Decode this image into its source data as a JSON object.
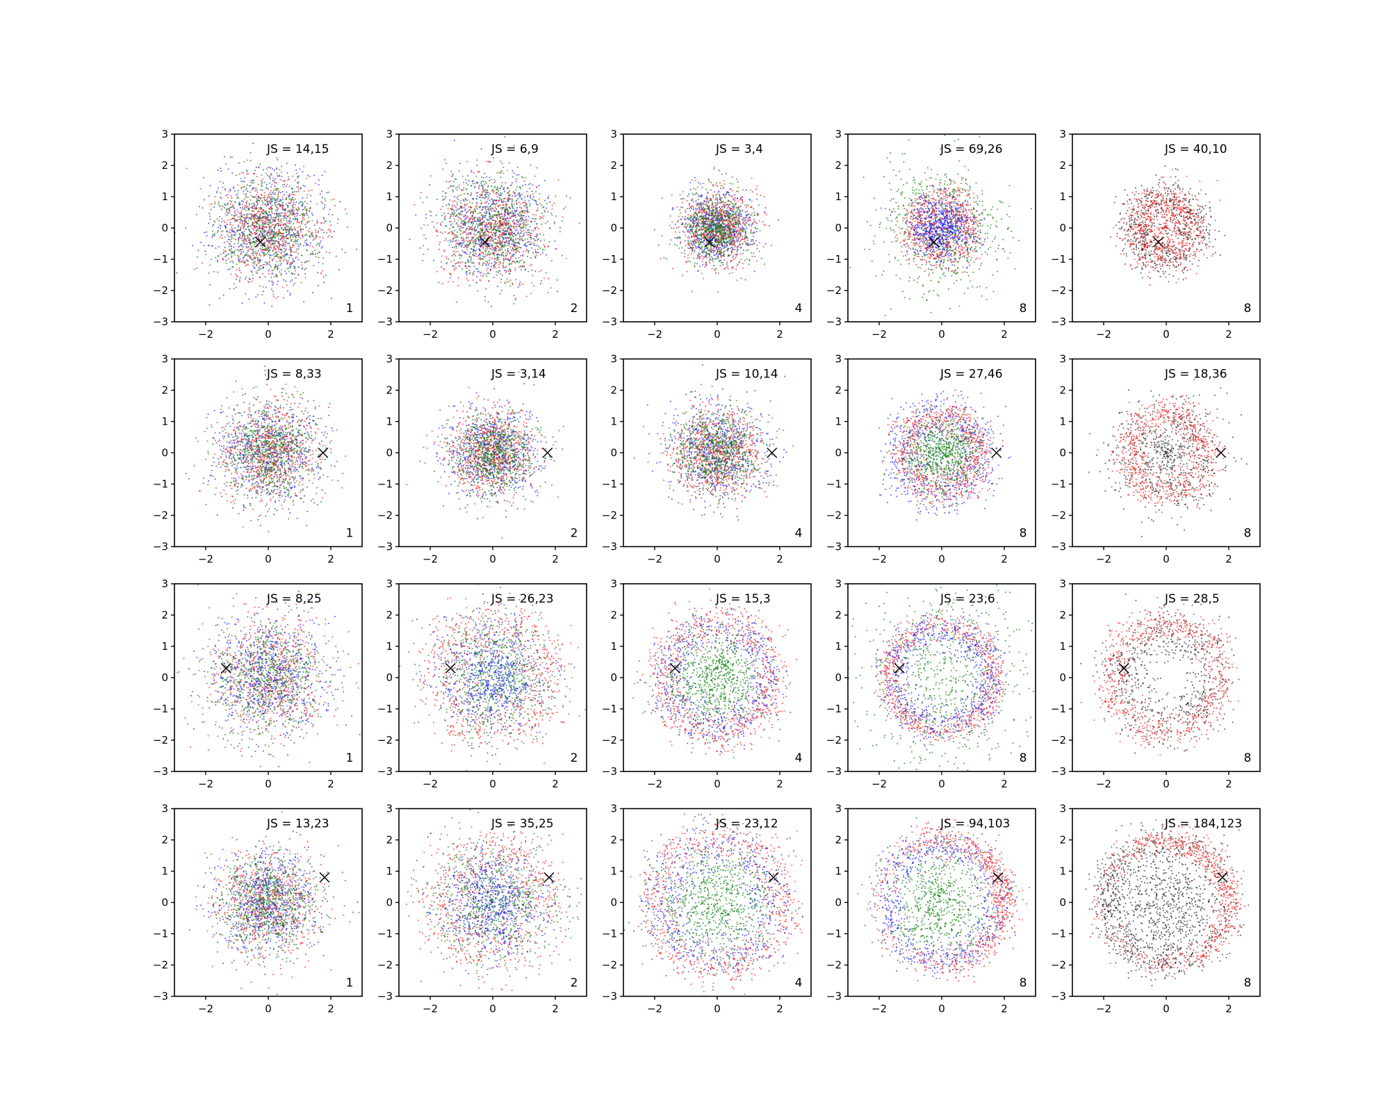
{
  "figure": {
    "colors": {
      "blue": "#1f1fff",
      "green": "#0a7d0a",
      "red": "#ff1a1a",
      "black": "#222222"
    },
    "xticks": [
      -2,
      0,
      2
    ],
    "yticks": [
      -3,
      -2,
      -1,
      0,
      1,
      2,
      3
    ],
    "xlim": [
      -3,
      3
    ],
    "ylim": [
      -3,
      3
    ]
  },
  "chart_data": [
    {
      "type": "scatter",
      "row": 0,
      "col": 0,
      "js": "JS = 14,15",
      "corner": "1",
      "marker": [
        -0.25,
        -0.45
      ],
      "series": [
        {
          "color": "blue",
          "dist": "gauss",
          "sigma": 0.95
        },
        {
          "color": "red",
          "dist": "gauss",
          "sigma": 0.8
        },
        {
          "color": "green",
          "dist": "gauss",
          "sigma": 0.8
        }
      ],
      "xlim": [
        -3,
        3
      ],
      "ylim": [
        -3,
        3
      ]
    },
    {
      "type": "scatter",
      "row": 0,
      "col": 1,
      "js": "JS = 6,9",
      "corner": "2",
      "marker": [
        -0.25,
        -0.45
      ],
      "series": [
        {
          "color": "blue",
          "dist": "gauss",
          "sigma": 0.85
        },
        {
          "color": "red",
          "dist": "gauss",
          "sigma": 0.85
        },
        {
          "color": "green",
          "dist": "gauss",
          "sigma": 0.85
        }
      ],
      "xlim": [
        -3,
        3
      ],
      "ylim": [
        -3,
        3
      ]
    },
    {
      "type": "scatter",
      "row": 0,
      "col": 2,
      "js": "JS = 3,4",
      "corner": "4",
      "marker": [
        -0.25,
        -0.45
      ],
      "series": [
        {
          "color": "blue",
          "dist": "gauss",
          "sigma": 0.6
        },
        {
          "color": "red",
          "dist": "gauss",
          "sigma": 0.6
        },
        {
          "color": "green",
          "dist": "gauss",
          "sigma": 0.55
        }
      ],
      "xlim": [
        -3,
        3
      ],
      "ylim": [
        -3,
        3
      ]
    },
    {
      "type": "scatter",
      "row": 0,
      "col": 3,
      "js": "JS = 69,26",
      "corner": "8",
      "marker": [
        -0.25,
        -0.45
      ],
      "series": [
        {
          "color": "green",
          "dist": "gauss",
          "sigma": 1.0
        },
        {
          "color": "red",
          "dist": "ring",
          "radius": 0.9,
          "width": 0.35
        },
        {
          "color": "blue",
          "dist": "gauss",
          "sigma": 0.5
        }
      ],
      "xlim": [
        -3,
        3
      ],
      "ylim": [
        -3,
        3
      ]
    },
    {
      "type": "scatter",
      "row": 0,
      "col": 4,
      "js": "JS = 40,10",
      "corner": "8",
      "marker": [
        -0.25,
        -0.45
      ],
      "series": [
        {
          "color": "black",
          "dist": "ring",
          "radius": 1.0,
          "width": 0.35
        },
        {
          "color": "red",
          "dist": "ring",
          "radius": 0.85,
          "width": 0.35
        }
      ],
      "xlim": [
        -3,
        3
      ],
      "ylim": [
        -3,
        3
      ]
    },
    {
      "type": "scatter",
      "row": 1,
      "col": 0,
      "js": "JS = 8,33",
      "corner": "1",
      "marker": [
        1.75,
        0.0
      ],
      "series": [
        {
          "color": "blue",
          "dist": "gauss",
          "sigma": 0.85
        },
        {
          "color": "red",
          "dist": "gauss",
          "sigma": 0.8
        },
        {
          "color": "green",
          "dist": "gauss",
          "sigma": 0.75
        }
      ],
      "xlim": [
        -3,
        3
      ],
      "ylim": [
        -3,
        3
      ]
    },
    {
      "type": "scatter",
      "row": 1,
      "col": 1,
      "js": "JS = 3,14",
      "corner": "2",
      "marker": [
        1.75,
        0.0
      ],
      "series": [
        {
          "color": "blue",
          "dist": "gauss",
          "sigma": 0.75
        },
        {
          "color": "red",
          "dist": "gauss",
          "sigma": 0.7
        },
        {
          "color": "green",
          "dist": "gauss",
          "sigma": 0.65
        }
      ],
      "xlim": [
        -3,
        3
      ],
      "ylim": [
        -3,
        3
      ]
    },
    {
      "type": "scatter",
      "row": 1,
      "col": 2,
      "js": "JS = 10,14",
      "corner": "4",
      "marker": [
        1.75,
        0.0
      ],
      "series": [
        {
          "color": "blue",
          "dist": "gauss",
          "sigma": 0.8
        },
        {
          "color": "red",
          "dist": "ring",
          "radius": 0.9,
          "width": 0.45
        },
        {
          "color": "green",
          "dist": "gauss",
          "sigma": 0.7
        }
      ],
      "xlim": [
        -3,
        3
      ],
      "ylim": [
        -3,
        3
      ]
    },
    {
      "type": "scatter",
      "row": 1,
      "col": 3,
      "js": "JS = 27,46",
      "corner": "8",
      "marker": [
        1.75,
        0.0
      ],
      "series": [
        {
          "color": "blue",
          "dist": "ring",
          "radius": 1.3,
          "width": 0.4
        },
        {
          "color": "red",
          "dist": "ring",
          "radius": 1.2,
          "width": 0.3
        },
        {
          "color": "green",
          "dist": "gauss",
          "sigma": 0.6
        }
      ],
      "xlim": [
        -3,
        3
      ],
      "ylim": [
        -3,
        3
      ]
    },
    {
      "type": "scatter",
      "row": 1,
      "col": 4,
      "js": "JS = 18,36",
      "corner": "8",
      "marker": [
        1.75,
        0.0
      ],
      "series": [
        {
          "color": "black",
          "dist": "ring",
          "radius": 1.1,
          "width": 0.6
        },
        {
          "color": "red",
          "dist": "ring",
          "radius": 1.25,
          "width": 0.3
        }
      ],
      "xlim": [
        -3,
        3
      ],
      "ylim": [
        -3,
        3
      ]
    },
    {
      "type": "scatter",
      "row": 2,
      "col": 0,
      "js": "JS = 8,25",
      "corner": "1",
      "marker": [
        -1.35,
        0.3
      ],
      "series": [
        {
          "color": "red",
          "dist": "gauss",
          "sigma": 1.0
        },
        {
          "color": "green",
          "dist": "gauss",
          "sigma": 0.9
        },
        {
          "color": "blue",
          "dist": "gauss",
          "sigma": 0.95
        }
      ],
      "xlim": [
        -3,
        3
      ],
      "ylim": [
        -3,
        3
      ]
    },
    {
      "type": "scatter",
      "row": 2,
      "col": 1,
      "js": "JS = 26,23",
      "corner": "2",
      "marker": [
        -1.35,
        0.3
      ],
      "series": [
        {
          "color": "red",
          "dist": "ring",
          "radius": 1.7,
          "width": 0.5
        },
        {
          "color": "green",
          "dist": "gauss",
          "sigma": 0.95
        },
        {
          "color": "blue",
          "dist": "gauss",
          "sigma": 0.9
        }
      ],
      "xlim": [
        -3,
        3
      ],
      "ylim": [
        -3,
        3
      ]
    },
    {
      "type": "scatter",
      "row": 2,
      "col": 2,
      "js": "JS = 15,3",
      "corner": "4",
      "marker": [
        -1.35,
        0.3
      ],
      "series": [
        {
          "color": "blue",
          "dist": "ring",
          "radius": 1.6,
          "width": 0.35
        },
        {
          "color": "red",
          "dist": "ring",
          "radius": 1.8,
          "width": 0.35
        },
        {
          "color": "green",
          "dist": "gauss",
          "sigma": 0.75
        }
      ],
      "xlim": [
        -3,
        3
      ],
      "ylim": [
        -3,
        3
      ]
    },
    {
      "type": "scatter",
      "row": 2,
      "col": 3,
      "js": "JS = 23,6",
      "corner": "8",
      "marker": [
        -1.35,
        0.3
      ],
      "series": [
        {
          "color": "green",
          "dist": "gauss",
          "sigma": 1.45
        },
        {
          "color": "red",
          "dist": "ring",
          "radius": 1.7,
          "width": 0.2
        },
        {
          "color": "blue",
          "dist": "ring",
          "radius": 1.55,
          "width": 0.3
        }
      ],
      "xlim": [
        -3,
        3
      ],
      "ylim": [
        -3,
        3
      ]
    },
    {
      "type": "scatter",
      "row": 2,
      "col": 4,
      "js": "JS = 28,5",
      "corner": "8",
      "marker": [
        -1.35,
        0.3
      ],
      "series": [
        {
          "color": "black",
          "dist": "ring",
          "radius": 1.5,
          "width": 0.45
        },
        {
          "color": "red",
          "dist": "ring",
          "radius": 1.75,
          "width": 0.3
        }
      ],
      "xlim": [
        -3,
        3
      ],
      "ylim": [
        -3,
        3
      ]
    },
    {
      "type": "scatter",
      "row": 3,
      "col": 0,
      "js": "JS = 13,23",
      "corner": "1",
      "marker": [
        1.8,
        0.8
      ],
      "series": [
        {
          "color": "red",
          "dist": "gauss",
          "sigma": 0.85
        },
        {
          "color": "blue",
          "dist": "gauss",
          "sigma": 0.85
        },
        {
          "color": "green",
          "dist": "gauss",
          "sigma": 0.75
        }
      ],
      "xlim": [
        -3,
        3
      ],
      "ylim": [
        -3,
        3
      ]
    },
    {
      "type": "scatter",
      "row": 3,
      "col": 1,
      "js": "JS = 35,25",
      "corner": "2",
      "marker": [
        1.8,
        0.8
      ],
      "series": [
        {
          "color": "red",
          "dist": "ring",
          "radius": 1.6,
          "width": 0.55
        },
        {
          "color": "green",
          "dist": "gauss",
          "sigma": 1.0
        },
        {
          "color": "blue",
          "dist": "gauss",
          "sigma": 0.85
        }
      ],
      "xlim": [
        -3,
        3
      ],
      "ylim": [
        -3,
        3
      ]
    },
    {
      "type": "scatter",
      "row": 3,
      "col": 2,
      "js": "JS = 23,12",
      "corner": "4",
      "marker": [
        1.8,
        0.8
      ],
      "series": [
        {
          "color": "red",
          "dist": "ring",
          "radius": 2.1,
          "width": 0.35
        },
        {
          "color": "blue",
          "dist": "ring",
          "radius": 1.8,
          "width": 0.45
        },
        {
          "color": "green",
          "dist": "gauss",
          "sigma": 0.9
        }
      ],
      "xlim": [
        -3,
        3
      ],
      "ylim": [
        -3,
        3
      ]
    },
    {
      "type": "scatter",
      "row": 3,
      "col": 3,
      "js": "JS = 94,103",
      "corner": "8",
      "marker": [
        1.8,
        0.8
      ],
      "series": [
        {
          "color": "green",
          "dist": "gauss",
          "sigma": 0.9
        },
        {
          "color": "blue",
          "dist": "ring",
          "radius": 1.8,
          "width": 0.3
        },
        {
          "color": "red",
          "dist": "arc",
          "radius": 2.0,
          "width": 0.25,
          "center": 0.3,
          "spread": 1.4
        }
      ],
      "xlim": [
        -3,
        3
      ],
      "ylim": [
        -3,
        3
      ]
    },
    {
      "type": "scatter",
      "row": 3,
      "col": 4,
      "js": "JS = 184,123",
      "corner": "8",
      "marker": [
        1.8,
        0.8
      ],
      "series": [
        {
          "color": "black",
          "dist": "arc",
          "radius": 1.9,
          "width": 0.3,
          "center": 3.5,
          "spread": 1.6
        },
        {
          "color": "black",
          "dist": "gauss",
          "sigma": 0.9
        },
        {
          "color": "red",
          "dist": "arc",
          "radius": 2.0,
          "width": 0.25,
          "center": 0.4,
          "spread": 1.5
        }
      ],
      "xlim": [
        -3,
        3
      ],
      "ylim": [
        -3,
        3
      ]
    }
  ]
}
